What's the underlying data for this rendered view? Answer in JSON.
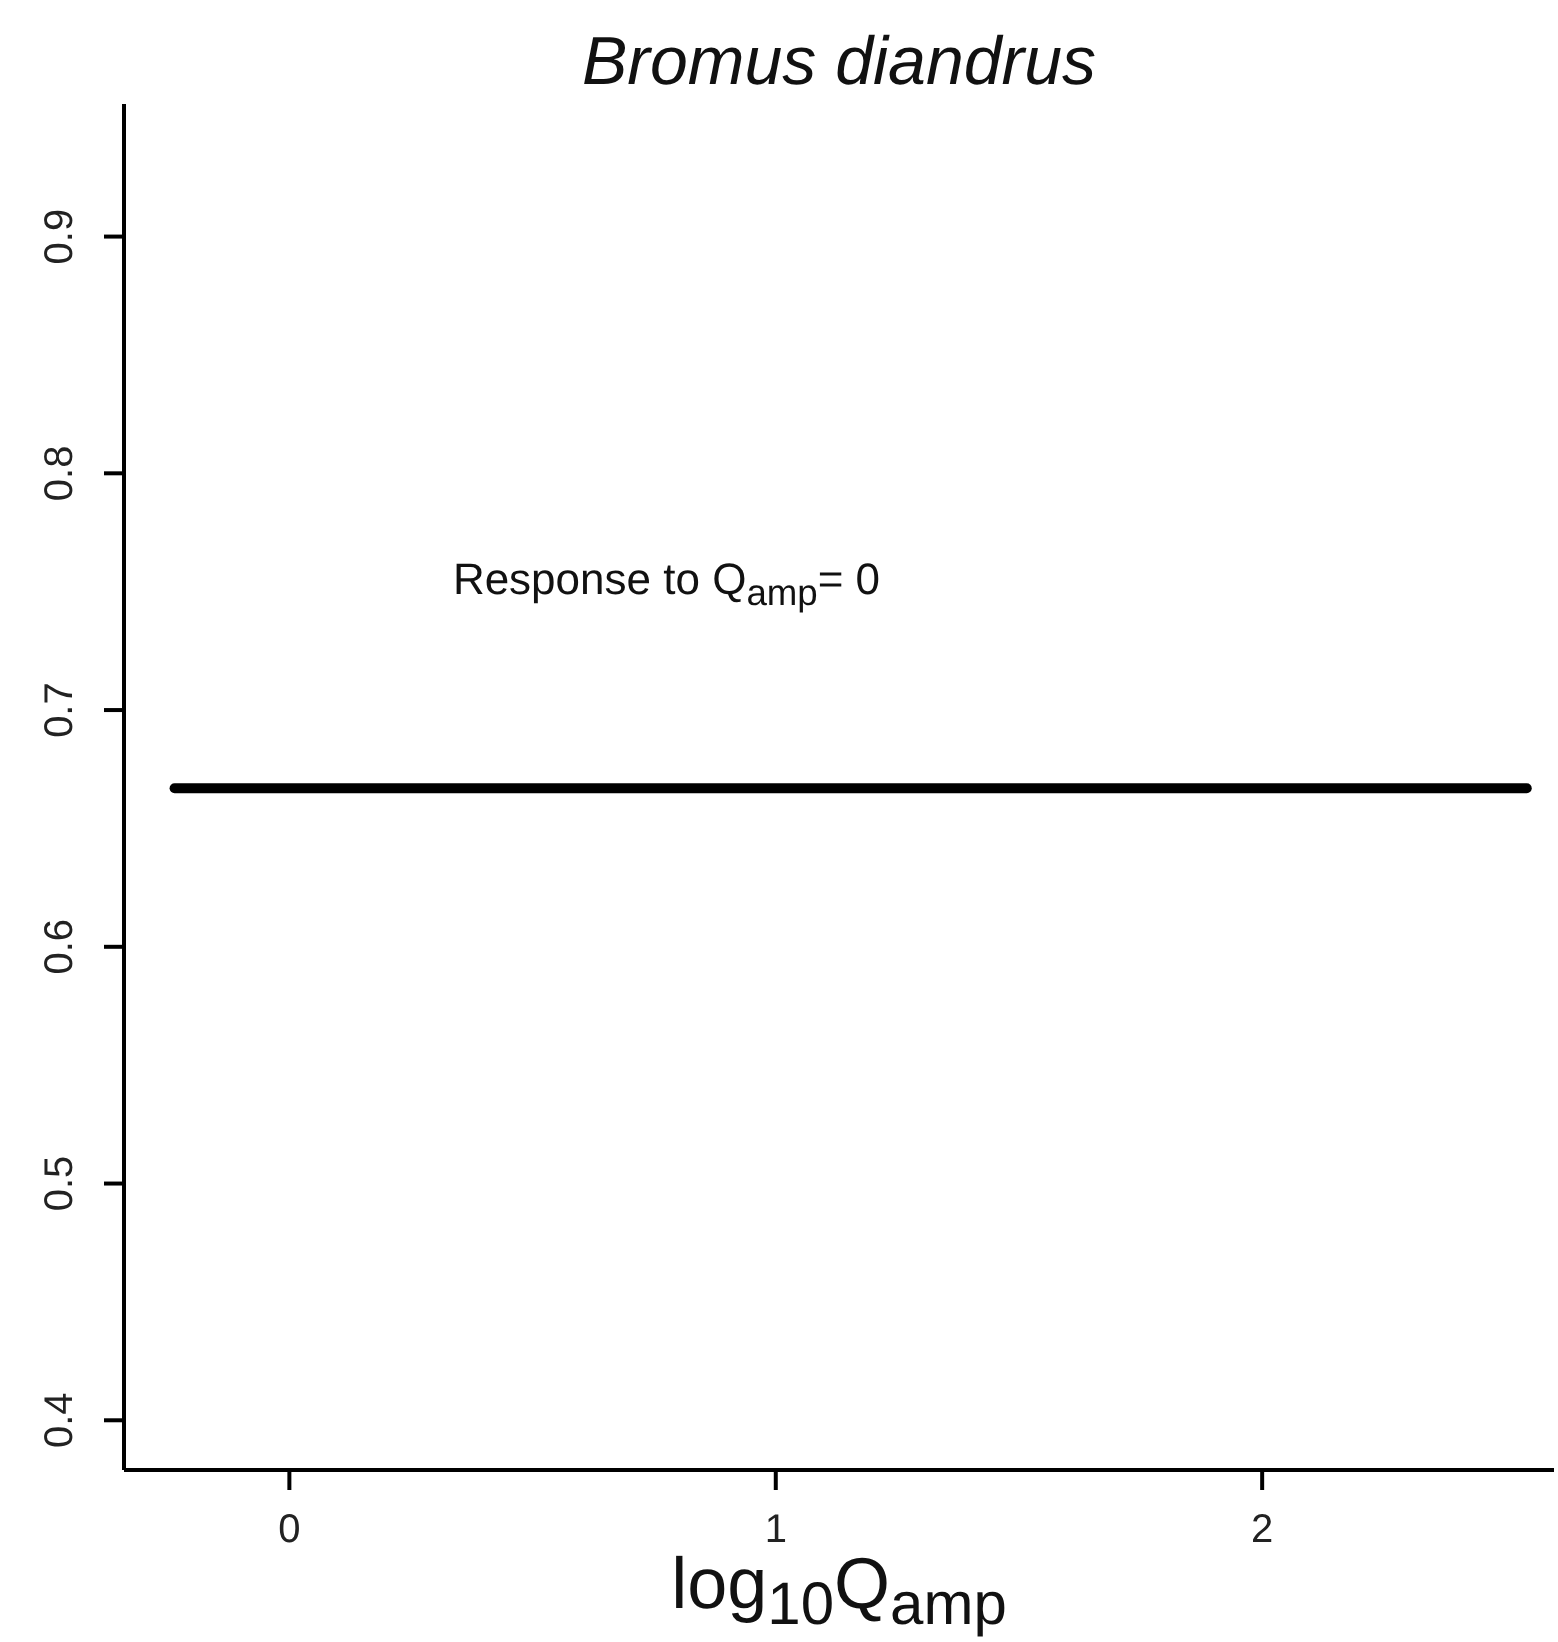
{
  "chart_data": {
    "type": "line",
    "title": "Bromus diandrus",
    "xlabel": "log$_{10}$Q$_{amp}$",
    "annotations": [
      "Response to Q$_{amp}$= 0"
    ],
    "series": [
      {
        "color": "#000000",
        "x": [
          -0.236,
          2.544
        ],
        "values": [
          0.667,
          0.667
        ]
      }
    ],
    "line_style": "solid",
    "xlim": [
      -0.34,
      2.6
    ],
    "xticks": [
      0,
      1,
      2
    ],
    "ylim": [
      0.379,
      0.956
    ],
    "yticks": [
      0.4,
      0.5,
      0.6,
      0.7,
      0.8,
      0.9
    ],
    "grid": false,
    "legend": false
  }
}
